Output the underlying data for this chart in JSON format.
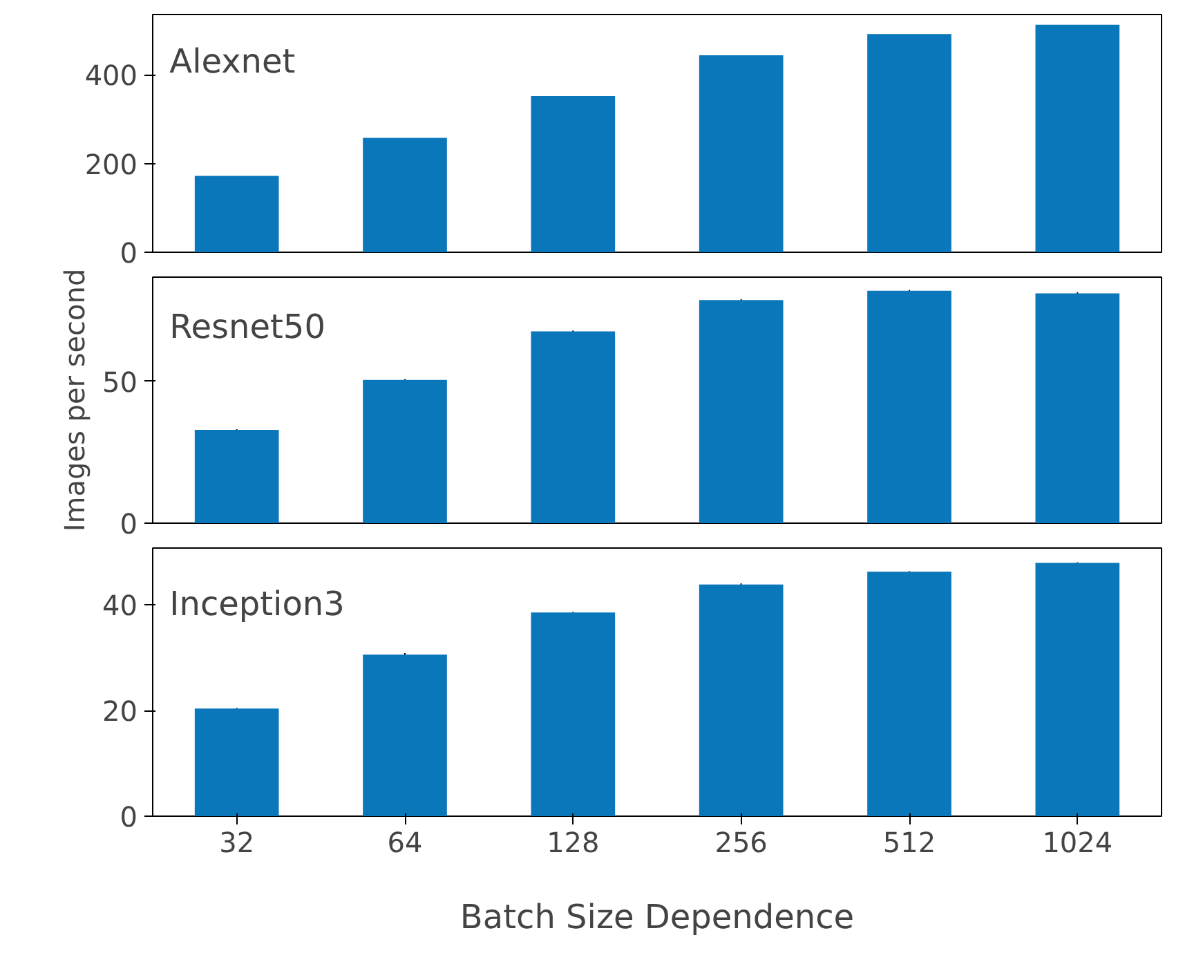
{
  "chart_data": [
    {
      "type": "bar",
      "categories": [
        "32",
        "64",
        "128",
        "256",
        "512",
        "1024"
      ],
      "annotations": [
        "Alexnet"
      ],
      "values": [
        172,
        258,
        352,
        444,
        492,
        513
      ],
      "color": "#0a77ba",
      "ylim": [
        0,
        536
      ],
      "yticks": [
        0,
        200,
        400
      ],
      "tick_labels": "y",
      "grid": false
    },
    {
      "type": "bar",
      "categories": [
        "32",
        "64",
        "128",
        "256",
        "512",
        "1024"
      ],
      "annotations": [
        "Resnet50"
      ],
      "ylabel": "Images per second",
      "values": [
        32.9,
        50.5,
        67.6,
        78.6,
        81.9,
        81.0
      ],
      "errors": [
        0.2,
        0.3,
        0.3,
        0.3,
        0.3,
        0.4
      ],
      "color": "#0a77ba",
      "ylim": [
        0,
        86.7
      ],
      "yticks": [
        0,
        50
      ],
      "tick_labels": "y",
      "grid": false
    },
    {
      "type": "bar",
      "categories": [
        "32",
        "64",
        "128",
        "256",
        "512",
        "1024"
      ],
      "annotations": [
        "Inception3"
      ],
      "xlabel": "Batch Size Dependence",
      "values": [
        20.4,
        30.6,
        38.6,
        43.9,
        46.3,
        48.0
      ],
      "errors": [
        0.1,
        0.3,
        0.1,
        0.2,
        0.1,
        0.1
      ],
      "color": "#0a77ba",
      "ylim": [
        0,
        50.8
      ],
      "yticks": [
        0,
        20,
        40
      ],
      "grid": false
    }
  ]
}
